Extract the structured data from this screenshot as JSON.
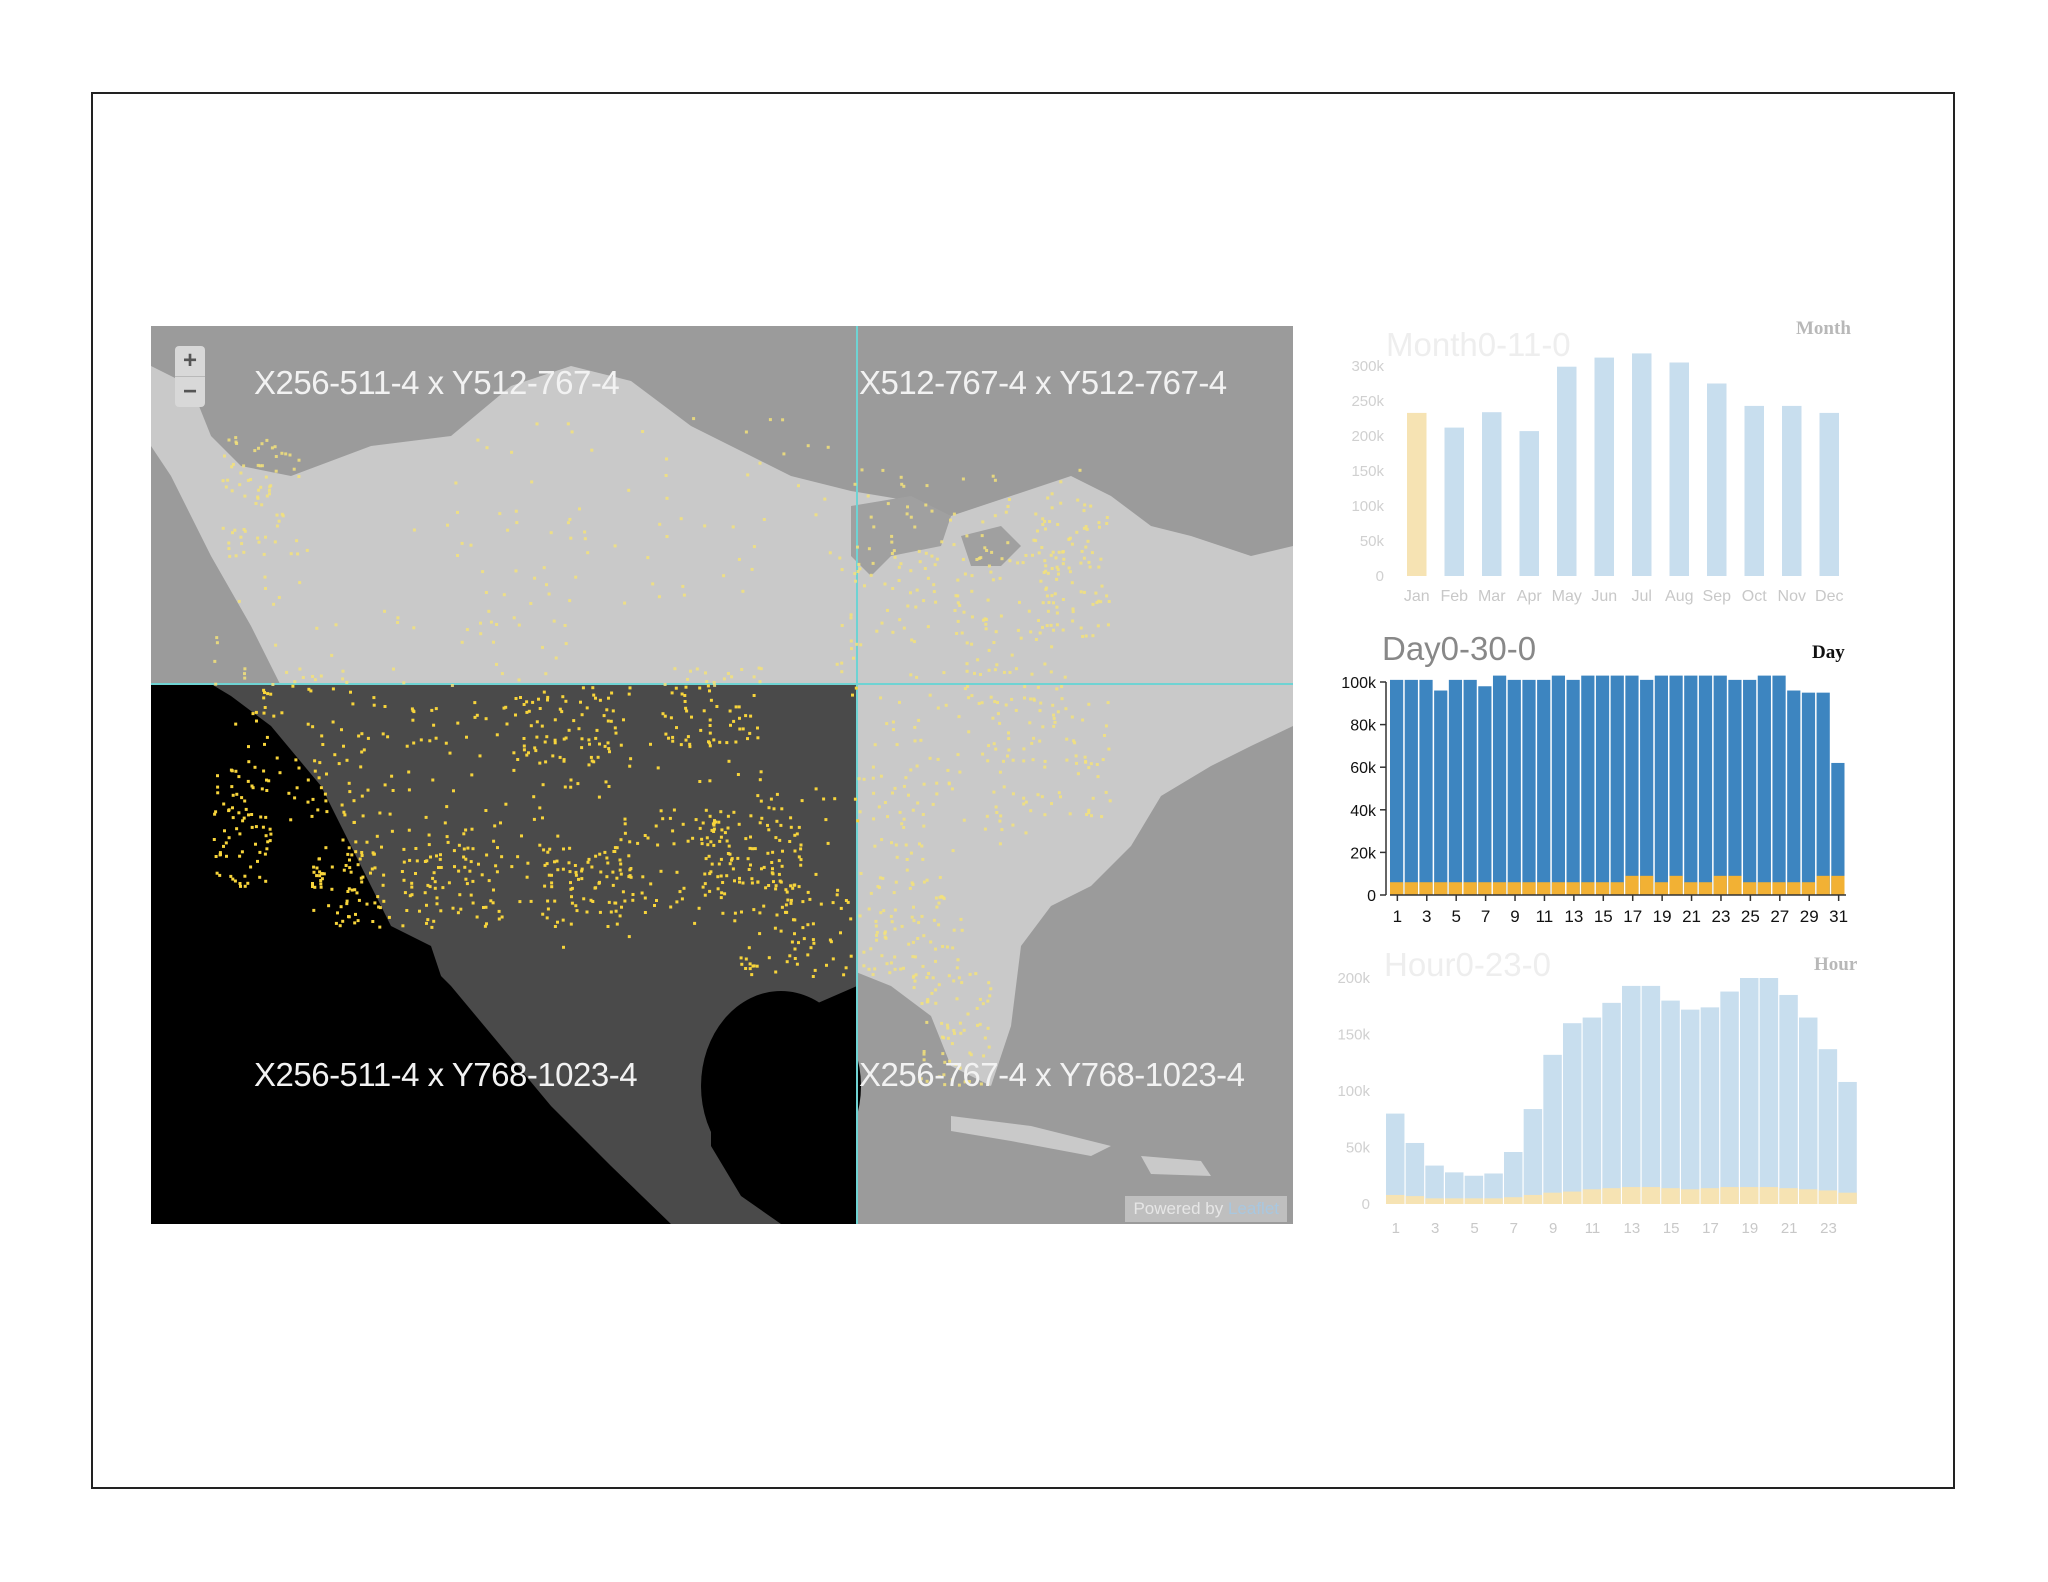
{
  "map": {
    "zoom_in": "+",
    "zoom_out": "−",
    "tiles": [
      {
        "label": "X256-511-4 x Y512-767-4"
      },
      {
        "label": "X512-767-4 x Y512-767-4"
      },
      {
        "label": "X256-511-4 x Y768-1023-4"
      },
      {
        "label": "X256-767-4 x Y768-1023-4"
      }
    ],
    "attribution_prefix": "Powered by ",
    "attribution_link": "Leaflet"
  },
  "charts": {
    "month": {
      "title": "Month0-11-0",
      "label": "Month"
    },
    "day": {
      "title": "Day0-30-0",
      "label": "Day"
    },
    "hour": {
      "title": "Hour0-23-0",
      "label": "Hour"
    }
  },
  "colors": {
    "blue": "#3d85c0",
    "orange": "#f2b134",
    "faded_blue": "#c8deee",
    "faded_orange": "#f6e3b3",
    "point": "#f7d43b"
  },
  "chart_data": [
    {
      "type": "bar",
      "title": "Month0-11-0",
      "label": "Month",
      "categories": [
        "Jan",
        "Feb",
        "Mar",
        "Apr",
        "May",
        "Jun",
        "Jul",
        "Aug",
        "Sep",
        "Oct",
        "Nov",
        "Dec"
      ],
      "values": [
        233000,
        212000,
        234000,
        207000,
        299000,
        312000,
        318000,
        305000,
        275000,
        243000,
        243000,
        233000
      ],
      "highlight_index": 0,
      "yticks": [
        "0",
        "50k",
        "100k",
        "150k",
        "200k",
        "250k",
        "300k"
      ],
      "ylim": [
        0,
        300000
      ]
    },
    {
      "type": "bar",
      "title": "Day0-30-0",
      "label": "Day",
      "categories": [
        1,
        2,
        3,
        4,
        5,
        6,
        7,
        8,
        9,
        10,
        11,
        12,
        13,
        14,
        15,
        16,
        17,
        18,
        19,
        20,
        21,
        22,
        23,
        24,
        25,
        26,
        27,
        28,
        29,
        30,
        31
      ],
      "xtick_labels": [
        "1",
        "3",
        "5",
        "7",
        "9",
        "11",
        "13",
        "15",
        "17",
        "19",
        "21",
        "23",
        "25",
        "27",
        "29",
        "31"
      ],
      "series": [
        {
          "values": [
            101000,
            101000,
            101000,
            96000,
            101000,
            101000,
            98000,
            103000,
            101000,
            101000,
            101000,
            103000,
            101000,
            103000,
            103000,
            103000,
            103000,
            101000,
            103000,
            103000,
            103000,
            103000,
            103000,
            101000,
            101000,
            103000,
            103000,
            96000,
            95000,
            95000,
            62000
          ]
        },
        {
          "values": [
            6000,
            6000,
            6000,
            6000,
            6000,
            6000,
            6000,
            6000,
            6000,
            6000,
            6000,
            6000,
            6000,
            6000,
            6000,
            6000,
            9000,
            9000,
            6000,
            9000,
            6000,
            6000,
            9000,
            9000,
            6000,
            6000,
            6000,
            6000,
            6000,
            9000,
            9000
          ]
        }
      ],
      "yticks": [
        "0",
        "20k",
        "40k",
        "60k",
        "80k",
        "100k"
      ],
      "ylim": [
        0,
        100000
      ]
    },
    {
      "type": "area",
      "title": "Hour0-23-0",
      "label": "Hour",
      "categories": [
        0,
        1,
        2,
        3,
        4,
        5,
        6,
        7,
        8,
        9,
        10,
        11,
        12,
        13,
        14,
        15,
        16,
        17,
        18,
        19,
        20,
        21,
        22,
        23
      ],
      "xtick_labels": [
        "1",
        "3",
        "5",
        "7",
        "9",
        "11",
        "13",
        "15",
        "17",
        "19",
        "21",
        "23"
      ],
      "series": [
        {
          "values": [
            80000,
            54000,
            34000,
            28000,
            25000,
            27000,
            46000,
            84000,
            132000,
            160000,
            165000,
            178000,
            193000,
            193000,
            180000,
            172000,
            174000,
            188000,
            207000,
            207000,
            185000,
            165000,
            137000,
            108000
          ]
        },
        {
          "values": [
            8000,
            7000,
            5000,
            5000,
            5000,
            5000,
            6000,
            8000,
            10000,
            11000,
            13000,
            14000,
            15000,
            15000,
            14000,
            13000,
            14000,
            15000,
            15000,
            15000,
            14000,
            13000,
            12000,
            10000
          ]
        }
      ],
      "yticks": [
        "0",
        "50k",
        "100k",
        "150k",
        "200k"
      ],
      "ylim": [
        0,
        200000
      ]
    }
  ]
}
